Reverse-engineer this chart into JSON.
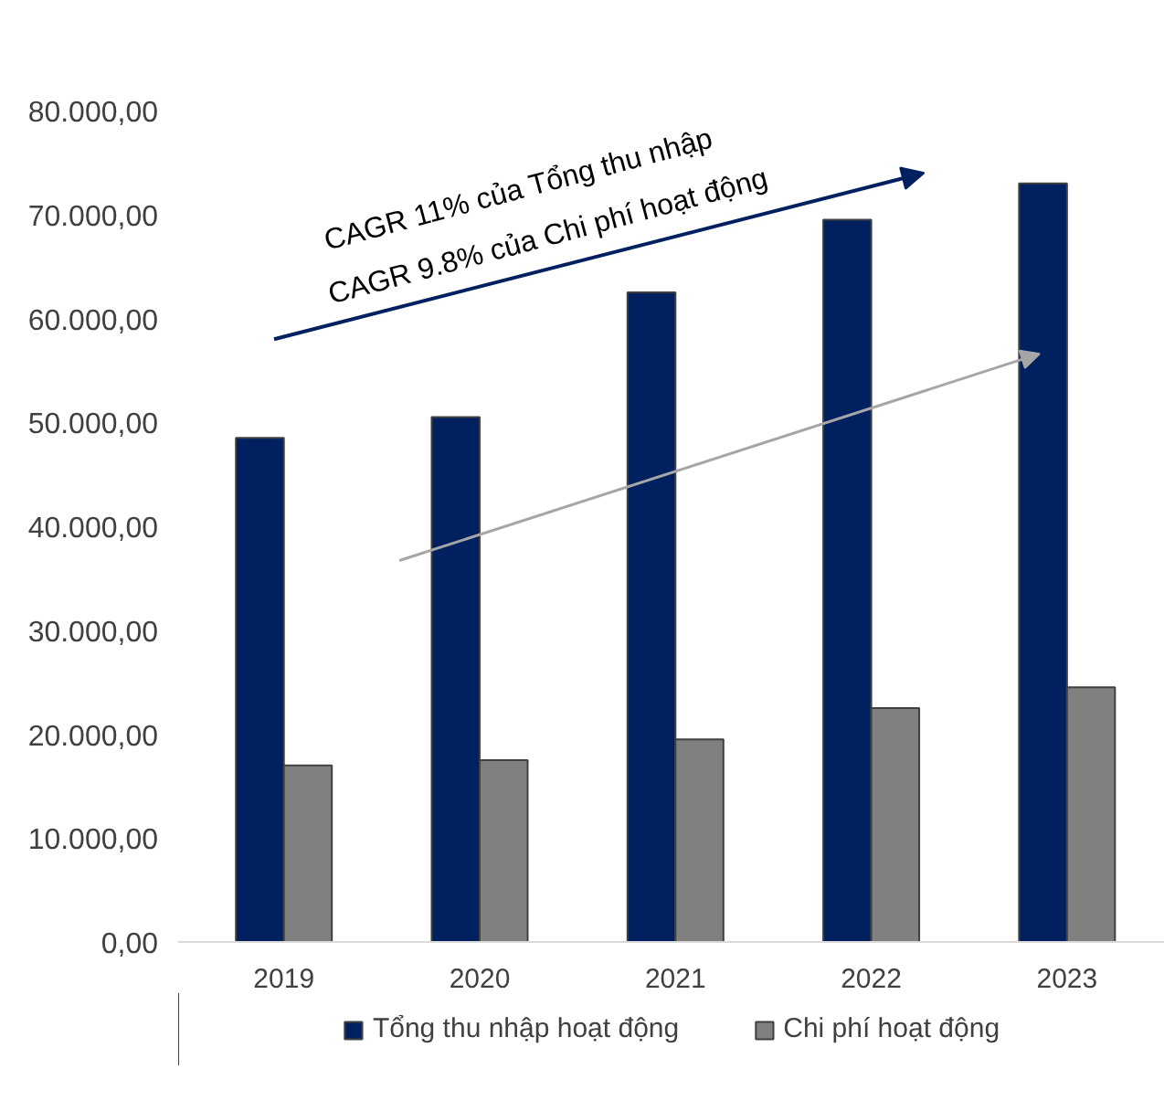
{
  "chart_data": {
    "type": "bar",
    "categories": [
      "2019",
      "2020",
      "2021",
      "2022",
      "2023"
    ],
    "series": [
      {
        "name": "Tổng thu nhập hoạt động",
        "color": "#002060",
        "values": [
          48500,
          50500,
          62500,
          69500,
          73000
        ]
      },
      {
        "name": "Chi phí hoạt động",
        "color": "#808080",
        "values": [
          17000,
          17500,
          19500,
          22500,
          24500
        ]
      }
    ],
    "ylim": [
      0,
      80000
    ],
    "yticks": [
      {
        "value": 0,
        "label": "0,00"
      },
      {
        "value": 10000,
        "label": "10.000,00"
      },
      {
        "value": 20000,
        "label": "20.000,00"
      },
      {
        "value": 30000,
        "label": "30.000,00"
      },
      {
        "value": 40000,
        "label": "40.000,00"
      },
      {
        "value": 50000,
        "label": "50.000,00"
      },
      {
        "value": 60000,
        "label": "60.000,00"
      },
      {
        "value": 70000,
        "label": "70.000,00"
      },
      {
        "value": 80000,
        "label": "80.000,00"
      }
    ],
    "annotations": [
      "CAGR 11% của Tổng thu nhập",
      "CAGR 9.8% của Chi phí hoạt động"
    ],
    "grid": false,
    "legend": "bottom"
  }
}
